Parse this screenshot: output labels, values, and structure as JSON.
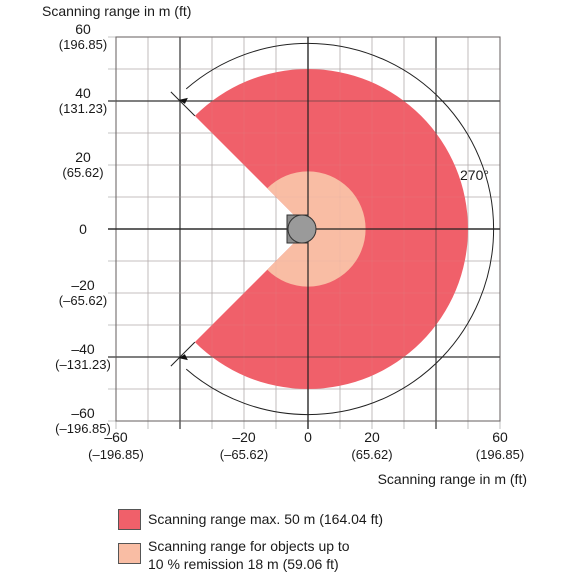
{
  "diagram": {
    "y_axis_title": "Scanning range in m (ft)",
    "x_axis_title": "Scanning range in m (ft)",
    "angle_label": "270°",
    "y_ticks": [
      {
        "value": 60,
        "m": "60",
        "ft": "(196.85)"
      },
      {
        "value": 40,
        "m": "40",
        "ft": "(131.23)"
      },
      {
        "value": 20,
        "m": "20",
        "ft": "(65.62)"
      },
      {
        "value": 0,
        "m": "0",
        "ft": ""
      },
      {
        "value": -20,
        "m": "–20",
        "ft": "(–65.62)"
      },
      {
        "value": -40,
        "m": "–40",
        "ft": "(–131.23)"
      },
      {
        "value": -60,
        "m": "–60",
        "ft": "(–196.85)"
      }
    ],
    "x_ticks": [
      {
        "value": -60,
        "m": "–60",
        "ft": "(–196.85)"
      },
      {
        "value": -20,
        "m": "–20",
        "ft": "(–65.62)"
      },
      {
        "value": 0,
        "m": "0",
        "ft": ""
      },
      {
        "value": 20,
        "m": "20",
        "ft": "(65.62)"
      },
      {
        "value": 60,
        "m": "60",
        "ft": "(196.85)"
      }
    ],
    "axis_range_m": [
      -60,
      60
    ],
    "grid_step_m": 10,
    "major_grid_step_m": 40,
    "max_range_m": 50,
    "remission_range_m": 18,
    "scan_angle_deg": 270,
    "colors": {
      "max_range": "#f0606a",
      "remission_range": "#f9bda4",
      "grid": "#b0b0b0",
      "major_grid": "#333333",
      "scanner_body": "#9a9a9a"
    },
    "legend": [
      {
        "color": "#f0606a",
        "lines": [
          "Scanning range max. 50 m (164.04 ft)"
        ]
      },
      {
        "color": "#f9bda4",
        "lines": [
          "Scanning range for objects up to",
          "10 % remission 18 m (59.06 ft)"
        ]
      }
    ]
  }
}
